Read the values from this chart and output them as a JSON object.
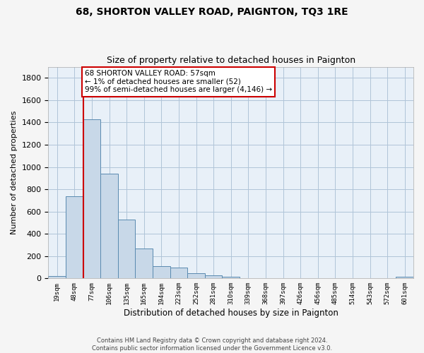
{
  "title": "68, SHORTON VALLEY ROAD, PAIGNTON, TQ3 1RE",
  "subtitle": "Size of property relative to detached houses in Paignton",
  "xlabel": "Distribution of detached houses by size in Paignton",
  "ylabel": "Number of detached properties",
  "bar_labels": [
    "19sqm",
    "48sqm",
    "77sqm",
    "106sqm",
    "135sqm",
    "165sqm",
    "194sqm",
    "223sqm",
    "252sqm",
    "281sqm",
    "310sqm",
    "339sqm",
    "368sqm",
    "397sqm",
    "426sqm",
    "456sqm",
    "485sqm",
    "514sqm",
    "543sqm",
    "572sqm",
    "601sqm"
  ],
  "bar_values": [
    20,
    740,
    1430,
    940,
    530,
    270,
    110,
    100,
    45,
    25,
    15,
    5,
    5,
    5,
    5,
    5,
    5,
    5,
    5,
    5,
    15
  ],
  "bar_color": "#c8d8e8",
  "bar_edge_color": "#5a8ab0",
  "vline_x": 1.5,
  "vline_color": "#cc0000",
  "annotation_text": "68 SHORTON VALLEY ROAD: 57sqm\n← 1% of detached houses are smaller (52)\n99% of semi-detached houses are larger (4,146) →",
  "annotation_box_color": "#ffffff",
  "annotation_box_edge_color": "#cc0000",
  "ylim": [
    0,
    1900
  ],
  "yticks": [
    0,
    200,
    400,
    600,
    800,
    1000,
    1200,
    1400,
    1600,
    1800
  ],
  "grid_color": "#b0c4d8",
  "background_color": "#e8f0f8",
  "footer_line1": "Contains HM Land Registry data © Crown copyright and database right 2024.",
  "footer_line2": "Contains public sector information licensed under the Government Licence v3.0.",
  "title_fontsize": 10,
  "subtitle_fontsize": 9
}
